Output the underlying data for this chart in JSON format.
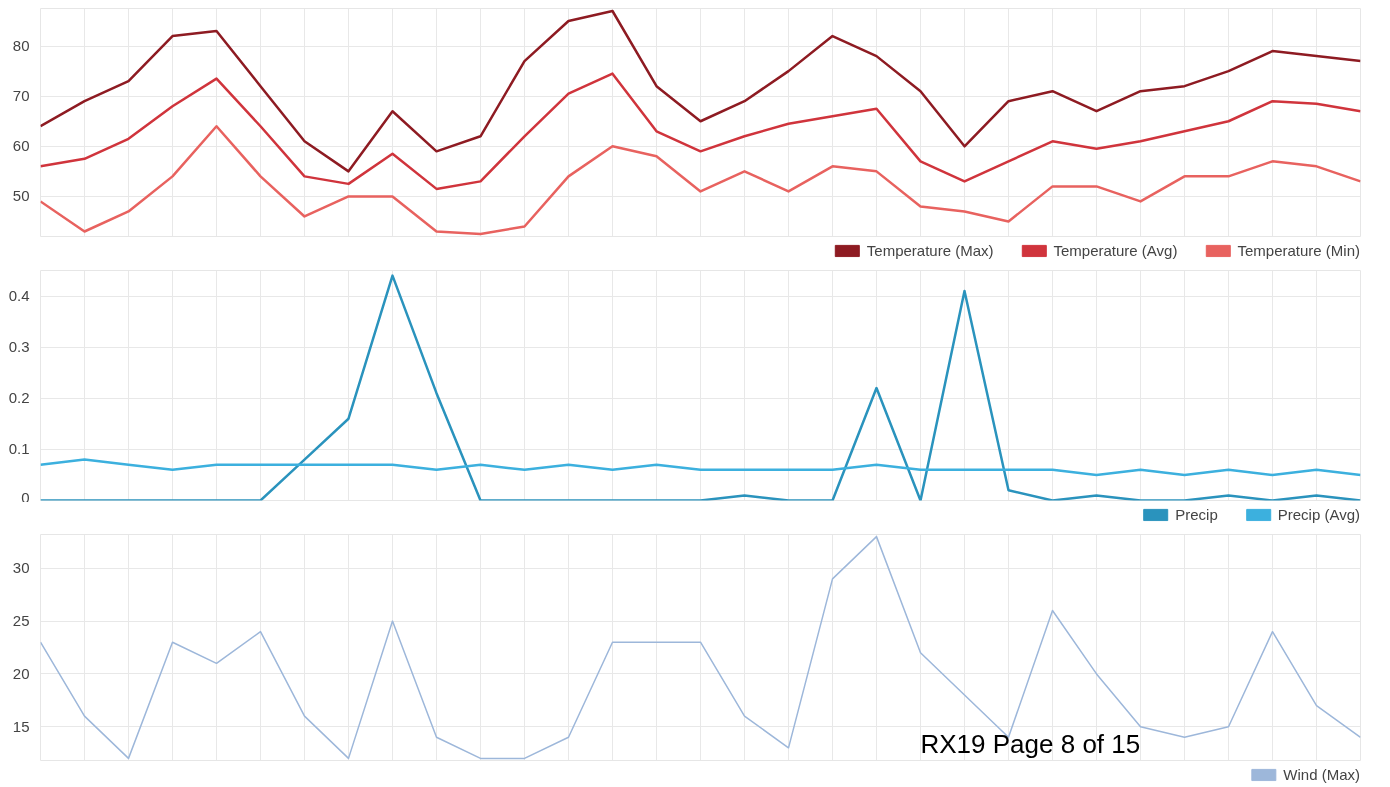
{
  "chart_data": [
    {
      "type": "line",
      "categories": [
        null,
        null,
        null,
        null,
        null,
        null,
        null,
        null,
        null,
        null,
        null,
        null,
        null,
        null,
        null,
        null,
        null,
        null,
        null,
        null,
        null,
        null,
        null,
        null,
        null,
        null,
        null,
        null,
        null,
        null,
        null
      ],
      "ylim": [
        42,
        87.5
      ],
      "yticks": [
        50,
        60,
        70,
        80
      ],
      "grid": true,
      "legend": "bottom right",
      "tick_labels": "y",
      "series": [
        {
          "name": "Temperature (Max)",
          "color": "#8e1b22",
          "values": [
            64,
            69,
            73,
            82,
            83,
            72,
            61,
            55,
            67,
            59,
            62,
            77,
            85,
            87,
            72,
            65,
            69,
            75,
            82,
            78,
            71,
            60,
            69,
            71,
            67,
            71,
            72,
            75,
            79,
            78,
            77
          ]
        },
        {
          "name": "Temperature (Avg)",
          "color": "#d0343c",
          "values": [
            56,
            57.5,
            61.5,
            68,
            73.5,
            64,
            54,
            52.5,
            58.5,
            51.5,
            53,
            62,
            70.5,
            74.5,
            63,
            59,
            62,
            64.5,
            66,
            67.5,
            57,
            53,
            57,
            61,
            59.5,
            61,
            63,
            65,
            69,
            68.5,
            67
          ]
        },
        {
          "name": "Temperature (Min)",
          "color": "#e8625f",
          "values": [
            49,
            43,
            47,
            54,
            64,
            54,
            46,
            50,
            50,
            43,
            42.5,
            44,
            54,
            60,
            58,
            51,
            55,
            51,
            56,
            55,
            48,
            47,
            45,
            52,
            52,
            49,
            54,
            54,
            57,
            56,
            53
          ]
        }
      ]
    },
    {
      "type": "line",
      "categories": [
        null,
        null,
        null,
        null,
        null,
        null,
        null,
        null,
        null,
        null,
        null,
        null,
        null,
        null,
        null,
        null,
        null,
        null,
        null,
        null,
        null,
        null,
        null,
        null,
        null,
        null,
        null,
        null,
        null,
        null,
        null
      ],
      "ylim": [
        0,
        0.45
      ],
      "yticks": [
        0,
        0.1,
        0.2,
        0.3,
        0.4
      ],
      "grid": true,
      "legend": "bottom right",
      "tick_labels": "y",
      "series": [
        {
          "name": "Precip",
          "color": "#2a93bd",
          "values": [
            0,
            0,
            0,
            0,
            0,
            0,
            0.08,
            0.16,
            0.44,
            0.21,
            0,
            0,
            0,
            0,
            0,
            0,
            0.01,
            0,
            0,
            0.22,
            0,
            0.41,
            0.02,
            0,
            0.01,
            0,
            0,
            0.01,
            0,
            0.01,
            0
          ]
        },
        {
          "name": "Precip (Avg)",
          "color": "#3cb0de",
          "values": [
            0.07,
            0.08,
            0.07,
            0.06,
            0.07,
            0.07,
            0.07,
            0.07,
            0.07,
            0.06,
            0.07,
            0.06,
            0.07,
            0.06,
            0.07,
            0.06,
            0.06,
            0.06,
            0.06,
            0.07,
            0.06,
            0.06,
            0.06,
            0.06,
            0.05,
            0.06,
            0.05,
            0.06,
            0.05,
            0.06,
            0.05
          ]
        }
      ]
    },
    {
      "type": "line",
      "categories": [
        null,
        null,
        null,
        null,
        null,
        null,
        null,
        null,
        null,
        null,
        null,
        null,
        null,
        null,
        null,
        null,
        null,
        null,
        null,
        null,
        null,
        null,
        null,
        null,
        null,
        null,
        null,
        null,
        null,
        null,
        null
      ],
      "ylim": [
        11.8,
        33.2
      ],
      "yticks": [
        15,
        20,
        25,
        30
      ],
      "grid": true,
      "legend": "bottom right",
      "tick_labels": "y",
      "annotations": [
        "RX19 Page 8 of 15"
      ],
      "series": [
        {
          "name": "Wind (Max)",
          "color": "#9db7da",
          "values": [
            23,
            16,
            12,
            23,
            21,
            24,
            16,
            12,
            25,
            14,
            12,
            12,
            14,
            23,
            23,
            23,
            16,
            13,
            29,
            33,
            22,
            18,
            14,
            26,
            20,
            15,
            14,
            15,
            24,
            17,
            14
          ]
        }
      ]
    }
  ]
}
